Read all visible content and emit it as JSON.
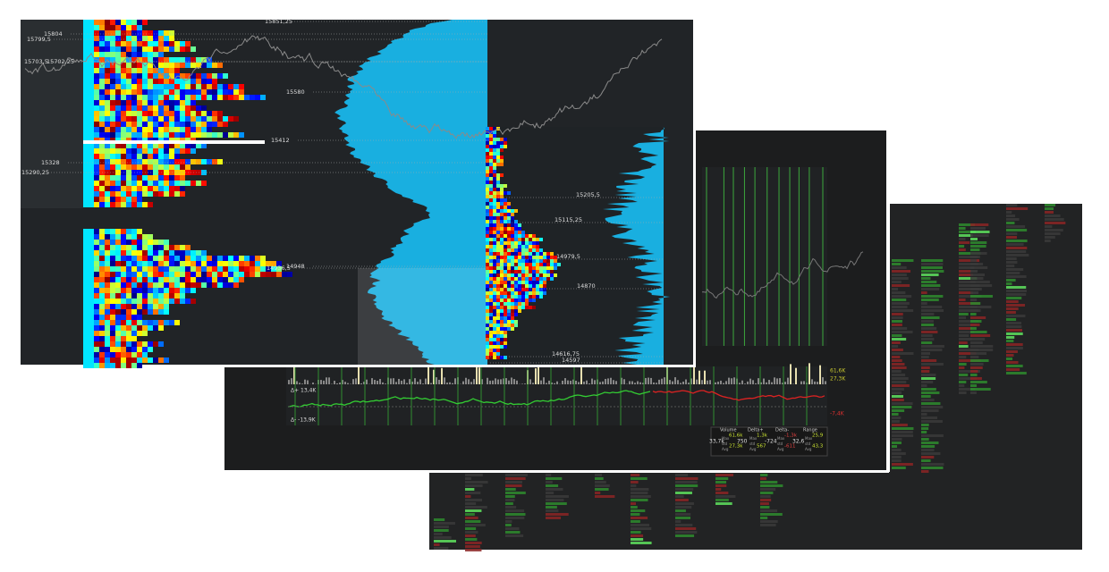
{
  "front_window": {
    "price_labels": [
      "15851,25",
      "15804",
      "15799,5",
      "15703,5",
      "15702,25",
      "15580",
      "15412",
      "15328",
      "15290,25",
      "14948",
      "14936,5"
    ],
    "inset_labels": [
      "15205,5",
      "15115,25",
      "14979,5",
      "14870",
      "14616,75",
      "14597"
    ]
  },
  "middle_window": {
    "axis_labels": [
      "61,6K",
      "27,3K",
      "-7,4K"
    ],
    "delta_labels": [
      "Δ+ 13,4K",
      "Δ- -13,9K"
    ],
    "stats": {
      "headers": [
        "Volume",
        "Delta+",
        "Delta-",
        "Range"
      ],
      "row_labels": [
        "Max",
        "std",
        "Avg"
      ],
      "columns": [
        {
          "main": "33,7k",
          "max": "61,6k",
          "avg": "27,3k"
        },
        {
          "main": "750",
          "max": "1,3k",
          "avg": "567"
        },
        {
          "main": "-724",
          "max": "-1,3k",
          "avg": "-611"
        },
        {
          "main": "32,6",
          "max": "25,9",
          "avg": "43,3"
        }
      ]
    }
  }
}
